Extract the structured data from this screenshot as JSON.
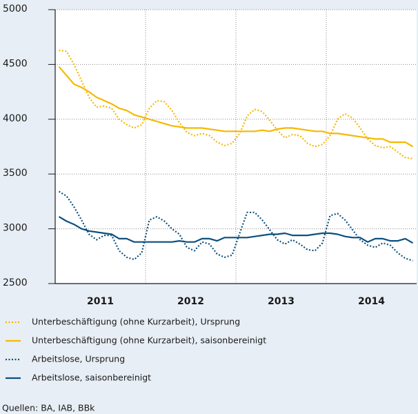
{
  "chart_data": {
    "type": "line",
    "categories": [
      "2011",
      null,
      null,
      null,
      null,
      null,
      null,
      null,
      null,
      null,
      null,
      null,
      "2012",
      null,
      null,
      null,
      null,
      null,
      null,
      null,
      null,
      null,
      null,
      null,
      "2013",
      null,
      null,
      null,
      null,
      null,
      null,
      null,
      null,
      null,
      null,
      null,
      "2014",
      null,
      null,
      null,
      null,
      null,
      null,
      null,
      null,
      null,
      null,
      null
    ],
    "ylim": [
      2500,
      5000
    ],
    "yticks": [
      2500,
      3000,
      3500,
      4000,
      4500,
      5000
    ],
    "grid": true,
    "series": [
      {
        "name": "Unterbeschäftigung (ohne Kurzarbeit), Ursprung",
        "color": "#f5b800",
        "style": "dotted",
        "values": [
          4630,
          4620,
          4500,
          4350,
          4200,
          4110,
          4120,
          4100,
          4000,
          3950,
          3920,
          3950,
          4100,
          4170,
          4160,
          4080,
          3970,
          3880,
          3850,
          3870,
          3850,
          3790,
          3760,
          3780,
          3870,
          4030,
          4090,
          4070,
          3990,
          3900,
          3830,
          3860,
          3850,
          3780,
          3750,
          3770,
          3850,
          4000,
          4050,
          4010,
          3920,
          3820,
          3760,
          3740,
          3750,
          3700,
          3650,
          3640
        ]
      },
      {
        "name": "Unterbeschäftigung (ohne Kurzarbeit), saisonbereinigt",
        "color": "#f5b800",
        "style": "solid",
        "values": [
          4480,
          4400,
          4320,
          4290,
          4250,
          4200,
          4170,
          4140,
          4100,
          4080,
          4040,
          4020,
          4000,
          3980,
          3960,
          3940,
          3930,
          3920,
          3920,
          3920,
          3910,
          3900,
          3890,
          3890,
          3890,
          3890,
          3890,
          3900,
          3890,
          3910,
          3920,
          3920,
          3910,
          3900,
          3890,
          3890,
          3870,
          3870,
          3860,
          3850,
          3840,
          3830,
          3820,
          3820,
          3790,
          3790,
          3790,
          3750
        ]
      },
      {
        "name": "Arbeitslose, Ursprung",
        "color": "#0b4f7c",
        "style": "dotted",
        "values": [
          3340,
          3300,
          3200,
          3080,
          2950,
          2900,
          2940,
          2940,
          2800,
          2740,
          2720,
          2780,
          3080,
          3110,
          3070,
          3000,
          2950,
          2830,
          2800,
          2880,
          2860,
          2770,
          2740,
          2760,
          2960,
          3150,
          3150,
          3080,
          2990,
          2900,
          2860,
          2900,
          2860,
          2810,
          2800,
          2870,
          3120,
          3140,
          3080,
          2990,
          2900,
          2850,
          2830,
          2870,
          2850,
          2780,
          2730,
          2710
        ]
      },
      {
        "name": "Arbeitslose, saisonbereinigt",
        "color": "#0b4f7c",
        "style": "solid",
        "values": [
          3110,
          3070,
          3040,
          3000,
          2980,
          2970,
          2960,
          2950,
          2910,
          2910,
          2880,
          2880,
          2880,
          2880,
          2880,
          2880,
          2890,
          2880,
          2880,
          2910,
          2910,
          2890,
          2920,
          2920,
          2920,
          2920,
          2930,
          2940,
          2950,
          2950,
          2960,
          2940,
          2940,
          2940,
          2950,
          2960,
          2960,
          2950,
          2930,
          2920,
          2920,
          2880,
          2910,
          2910,
          2890,
          2890,
          2910,
          2870
        ]
      }
    ],
    "source": "Quellen: BA, IAB, BBk"
  }
}
